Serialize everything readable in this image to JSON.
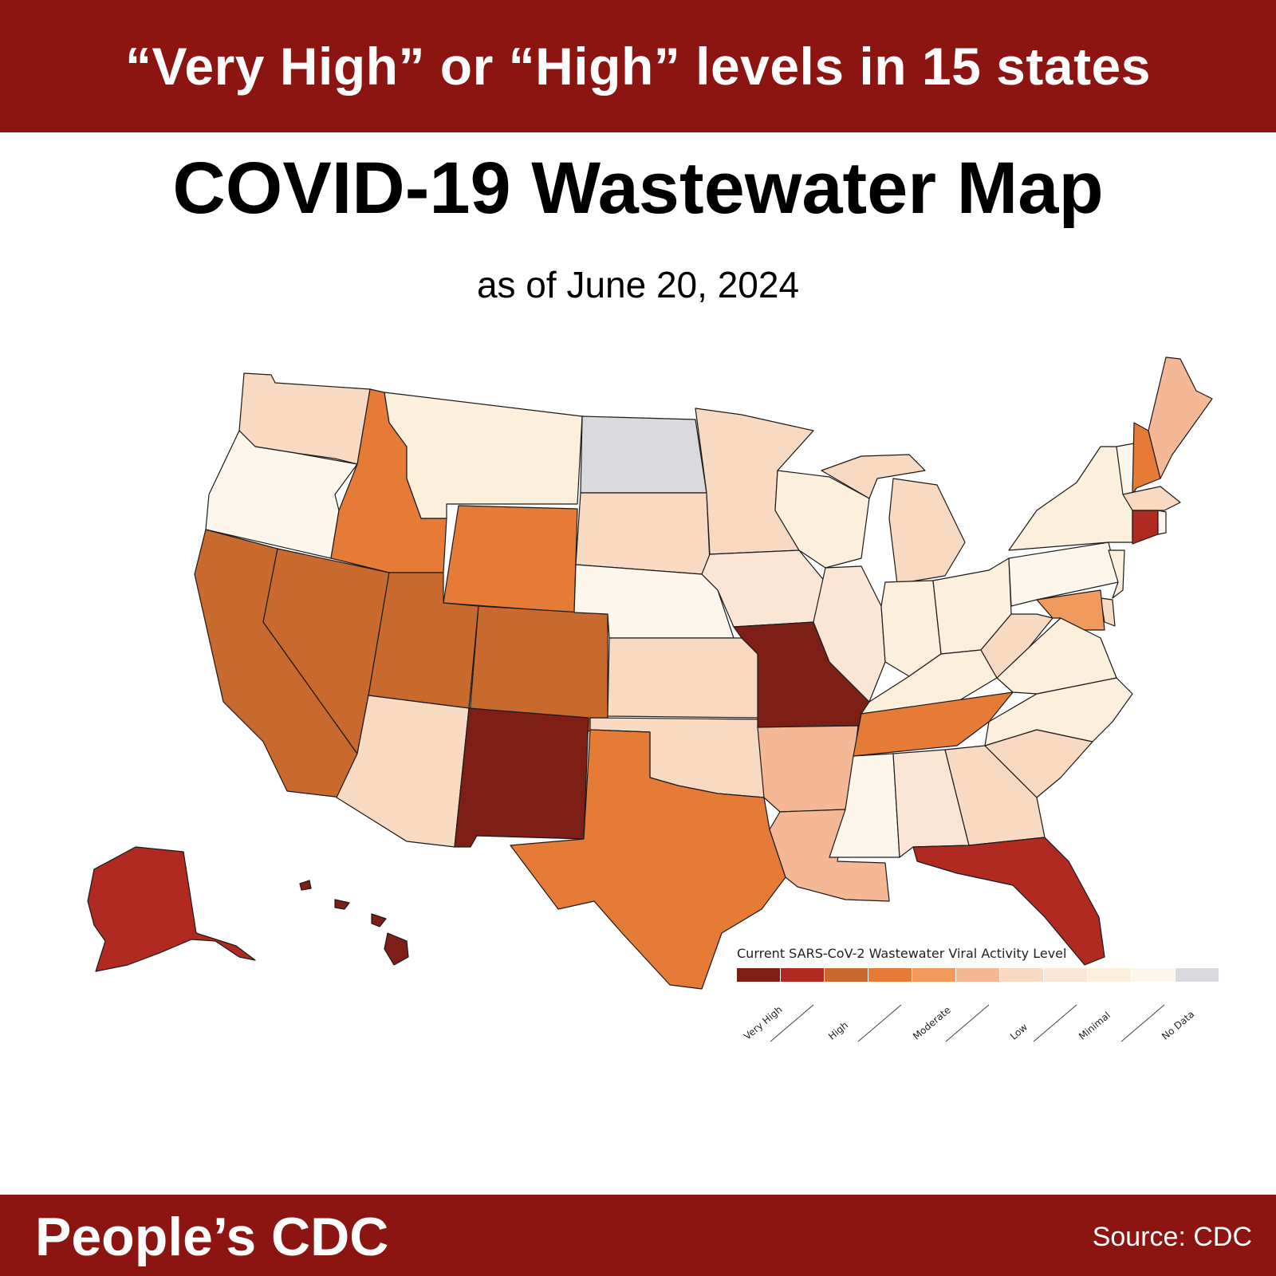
{
  "header": {
    "banner_text": "“Very High” or “High” levels in 15 states"
  },
  "title": "COVID-19 Wastewater Map",
  "subtitle": "as of June 20, 2024",
  "legend": {
    "title": "Current SARS-CoV-2 Wastewater Viral Activity Level",
    "swatches": [
      "#7d1e17",
      "#b02a21",
      "#c8692e",
      "#e67b37",
      "#f09a5e",
      "#f4b896",
      "#f8d9c1",
      "#fbe6d6",
      "#fcefdb",
      "#fdf6ed",
      "#d9d9de"
    ],
    "labels": [
      "Very High",
      "High",
      "Moderate",
      "Low",
      "Minimal",
      "No Data"
    ]
  },
  "colors": {
    "very_high": "#7d1e17",
    "high": "#b02a21",
    "high_low": "#c8692e",
    "moderate_high": "#e67b37",
    "moderate": "#f09a5e",
    "moderate_low": "#f4b896",
    "low": "#f8d9c1",
    "low_light": "#fbe6d6",
    "minimal": "#fcefdb",
    "minimal_light": "#fdf6ed",
    "no_data": "#d9d9de"
  },
  "footer": {
    "brand": "People’s CDC",
    "source": "Source: CDC"
  }
}
